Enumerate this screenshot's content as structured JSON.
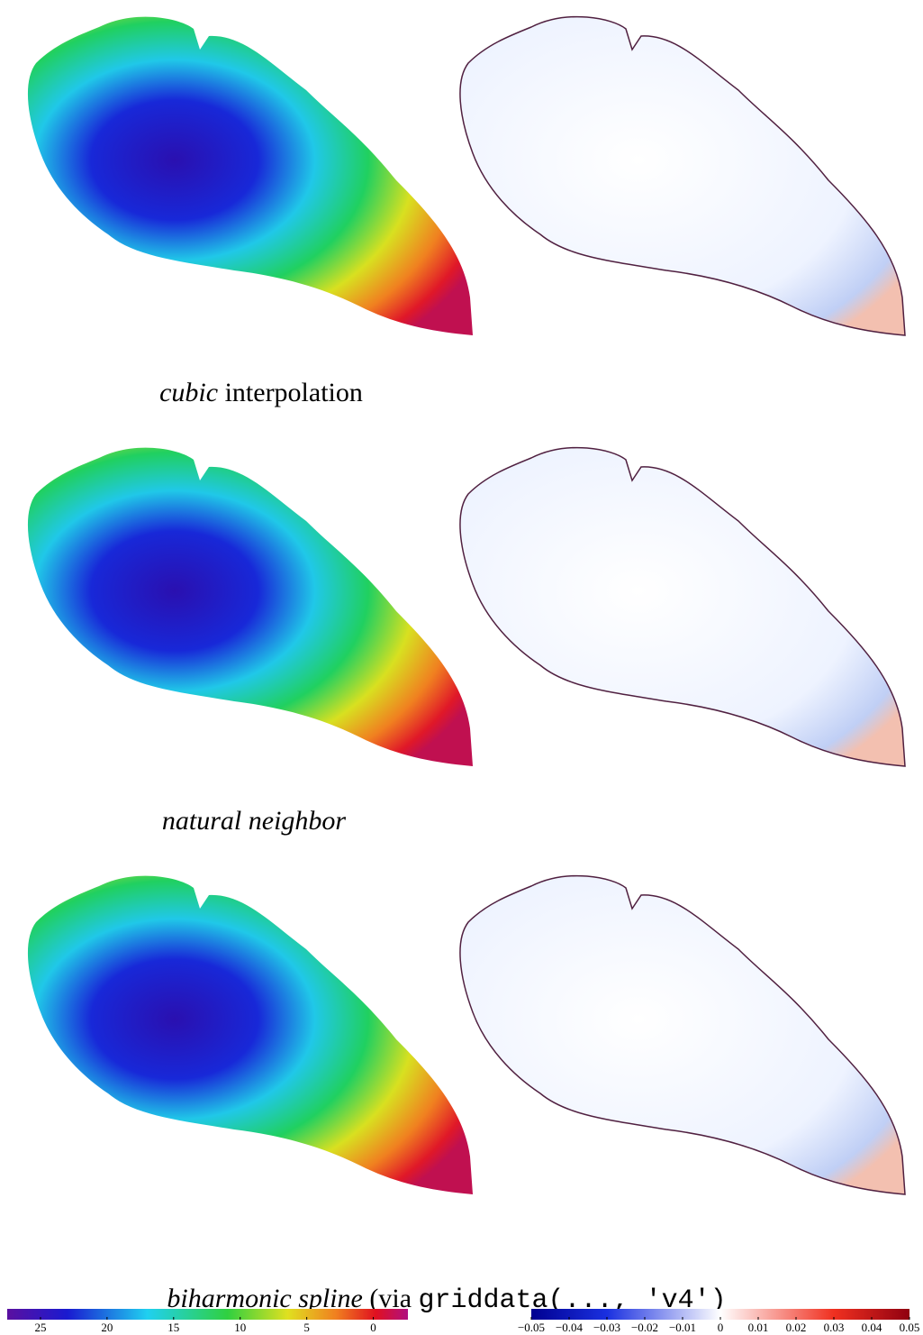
{
  "captions": [
    {
      "italic": "cubic",
      "text": " interpolation"
    },
    {
      "italic": "natural neighbor"
    },
    {
      "italic": "biharmonic spline",
      "text": " (via ",
      "code": "griddata(..., 'v4')"
    }
  ],
  "colorbars": [
    {
      "lim": [
        27.5,
        -2.6
      ],
      "ticks": [
        25,
        20,
        15,
        10,
        5,
        0
      ]
    },
    {
      "lim": [
        -0.05,
        0.05
      ],
      "ticks": [
        {
          "value": -0.05,
          "label": "−0.05"
        },
        {
          "value": -0.04,
          "label": "−0.04"
        },
        {
          "value": -0.03,
          "label": "−0.03"
        },
        {
          "value": -0.02,
          "label": "−0.02"
        },
        {
          "value": -0.01,
          "label": "−0.01"
        },
        0,
        {
          "value": 0.01,
          "label": "0.01"
        },
        {
          "value": 0.02,
          "label": "0.02"
        },
        {
          "value": 0.03,
          "label": "0.03"
        },
        {
          "value": 0.04,
          "label": "0.04"
        },
        {
          "value": 0.05,
          "label": "0.05"
        }
      ]
    }
  ]
}
